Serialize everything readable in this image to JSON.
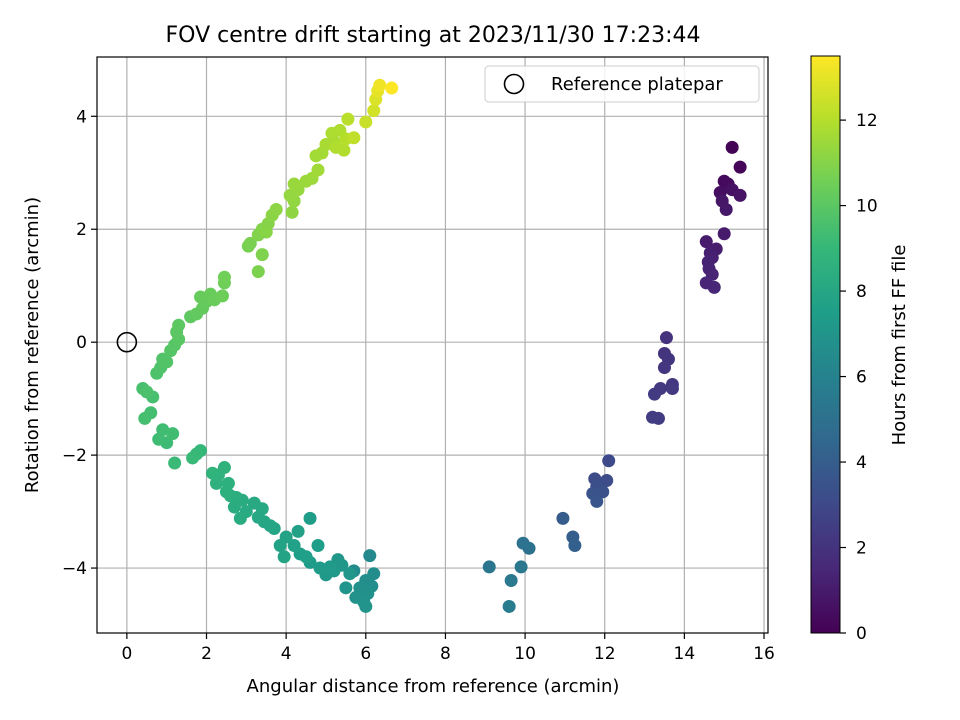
{
  "chart_data": {
    "type": "scatter",
    "title": "FOV centre drift starting at 2023/11/30 17:23:44",
    "xlabel": "Angular distance from reference (arcmin)",
    "ylabel": "Rotation from reference (arcmin)",
    "colorbar_label": "Hours from first FF file",
    "xlim": [
      -0.75,
      16.1
    ],
    "ylim": [
      -5.15,
      5.05
    ],
    "clim": [
      0,
      13.5
    ],
    "xticks": [
      0,
      2,
      4,
      6,
      8,
      10,
      12,
      14,
      16
    ],
    "yticks": [
      -4,
      -2,
      0,
      2,
      4
    ],
    "cticks": [
      0,
      2,
      4,
      6,
      8,
      10,
      12
    ],
    "xtick_labels": [
      "0",
      "2",
      "4",
      "6",
      "8",
      "10",
      "12",
      "14",
      "16"
    ],
    "ytick_labels": [
      "−4",
      "−2",
      "0",
      "2",
      "4"
    ],
    "ctick_labels": [
      "0",
      "2",
      "4",
      "6",
      "8",
      "10",
      "12"
    ],
    "grid": true,
    "legend": {
      "position": "top-right",
      "entries": [
        "Reference platepar"
      ]
    },
    "reference_point": {
      "x": 0,
      "y": 0
    },
    "colormap": [
      "#440154",
      "#482878",
      "#3e4989",
      "#31688e",
      "#26828e",
      "#1f9e89",
      "#35b779",
      "#6ece58",
      "#b5de2b",
      "#fde725"
    ],
    "points": [
      {
        "x": 15.2,
        "y": 3.45,
        "h": 0.1
      },
      {
        "x": 15.4,
        "y": 3.1,
        "h": 0.2
      },
      {
        "x": 15.0,
        "y": 2.85,
        "h": 0.3
      },
      {
        "x": 15.1,
        "y": 2.8,
        "h": 0.4
      },
      {
        "x": 14.9,
        "y": 2.65,
        "h": 0.5
      },
      {
        "x": 15.2,
        "y": 2.7,
        "h": 0.6
      },
      {
        "x": 15.4,
        "y": 2.6,
        "h": 0.7
      },
      {
        "x": 14.95,
        "y": 2.5,
        "h": 0.8
      },
      {
        "x": 15.05,
        "y": 2.35,
        "h": 0.9
      },
      {
        "x": 15.0,
        "y": 1.92,
        "h": 1.0
      },
      {
        "x": 14.55,
        "y": 1.78,
        "h": 1.05
      },
      {
        "x": 14.8,
        "y": 1.65,
        "h": 1.1
      },
      {
        "x": 14.65,
        "y": 1.58,
        "h": 1.15
      },
      {
        "x": 14.7,
        "y": 1.5,
        "h": 1.2
      },
      {
        "x": 14.6,
        "y": 1.42,
        "h": 1.25
      },
      {
        "x": 14.62,
        "y": 1.3,
        "h": 1.3
      },
      {
        "x": 14.7,
        "y": 1.2,
        "h": 1.35
      },
      {
        "x": 14.55,
        "y": 1.05,
        "h": 1.4
      },
      {
        "x": 14.75,
        "y": 0.97,
        "h": 1.45
      },
      {
        "x": 13.55,
        "y": 0.08,
        "h": 2.0
      },
      {
        "x": 13.5,
        "y": -0.2,
        "h": 2.05
      },
      {
        "x": 13.6,
        "y": -0.3,
        "h": 2.1
      },
      {
        "x": 13.5,
        "y": -0.45,
        "h": 2.15
      },
      {
        "x": 13.7,
        "y": -0.75,
        "h": 2.2
      },
      {
        "x": 13.4,
        "y": -0.82,
        "h": 2.25
      },
      {
        "x": 13.7,
        "y": -0.82,
        "h": 2.3
      },
      {
        "x": 13.25,
        "y": -0.92,
        "h": 2.35
      },
      {
        "x": 13.2,
        "y": -1.33,
        "h": 2.4
      },
      {
        "x": 13.35,
        "y": -1.35,
        "h": 2.45
      },
      {
        "x": 12.1,
        "y": -2.1,
        "h": 3.0
      },
      {
        "x": 11.75,
        "y": -2.42,
        "h": 3.1
      },
      {
        "x": 12.05,
        "y": -2.45,
        "h": 3.2
      },
      {
        "x": 11.8,
        "y": -2.55,
        "h": 3.3
      },
      {
        "x": 11.95,
        "y": -2.65,
        "h": 3.4
      },
      {
        "x": 11.7,
        "y": -2.68,
        "h": 3.5
      },
      {
        "x": 11.8,
        "y": -2.82,
        "h": 3.6
      },
      {
        "x": 10.95,
        "y": -3.12,
        "h": 3.9
      },
      {
        "x": 11.2,
        "y": -3.45,
        "h": 4.0
      },
      {
        "x": 11.25,
        "y": -3.6,
        "h": 4.1
      },
      {
        "x": 10.1,
        "y": -3.65,
        "h": 5.0
      },
      {
        "x": 9.95,
        "y": -3.56,
        "h": 5.1
      },
      {
        "x": 9.1,
        "y": -3.98,
        "h": 5.3
      },
      {
        "x": 9.9,
        "y": -3.98,
        "h": 5.4
      },
      {
        "x": 9.65,
        "y": -4.22,
        "h": 5.5
      },
      {
        "x": 9.6,
        "y": -4.68,
        "h": 5.6
      },
      {
        "x": 6.1,
        "y": -3.78,
        "h": 6.4
      },
      {
        "x": 5.7,
        "y": -4.05,
        "h": 6.5
      },
      {
        "x": 6.2,
        "y": -4.1,
        "h": 6.6
      },
      {
        "x": 6.0,
        "y": -4.22,
        "h": 6.65
      },
      {
        "x": 6.15,
        "y": -4.32,
        "h": 6.7
      },
      {
        "x": 5.85,
        "y": -4.35,
        "h": 6.75
      },
      {
        "x": 6.05,
        "y": -4.45,
        "h": 6.8
      },
      {
        "x": 5.75,
        "y": -4.52,
        "h": 6.85
      },
      {
        "x": 5.95,
        "y": -4.6,
        "h": 6.9
      },
      {
        "x": 6.0,
        "y": -4.68,
        "h": 6.95
      },
      {
        "x": 5.5,
        "y": -4.35,
        "h": 7.0
      },
      {
        "x": 5.6,
        "y": -4.1,
        "h": 7.05
      },
      {
        "x": 5.4,
        "y": -3.95,
        "h": 7.1
      },
      {
        "x": 5.3,
        "y": -3.85,
        "h": 7.15
      },
      {
        "x": 5.2,
        "y": -4.05,
        "h": 7.2
      },
      {
        "x": 5.0,
        "y": -4.12,
        "h": 7.25
      },
      {
        "x": 5.1,
        "y": -3.98,
        "h": 7.3
      },
      {
        "x": 4.85,
        "y": -4.0,
        "h": 7.35
      },
      {
        "x": 4.6,
        "y": -3.9,
        "h": 7.4
      },
      {
        "x": 4.6,
        "y": -3.12,
        "h": 7.45
      },
      {
        "x": 4.8,
        "y": -3.6,
        "h": 7.5
      },
      {
        "x": 4.35,
        "y": -3.75,
        "h": 7.55
      },
      {
        "x": 4.5,
        "y": -3.8,
        "h": 7.6
      },
      {
        "x": 4.2,
        "y": -3.6,
        "h": 7.65
      },
      {
        "x": 4.3,
        "y": -3.35,
        "h": 7.7
      },
      {
        "x": 4.0,
        "y": -3.45,
        "h": 7.75
      },
      {
        "x": 3.85,
        "y": -3.6,
        "h": 7.8
      },
      {
        "x": 3.95,
        "y": -3.8,
        "h": 7.85
      },
      {
        "x": 3.7,
        "y": -3.3,
        "h": 7.9
      },
      {
        "x": 3.6,
        "y": -3.25,
        "h": 7.95
      },
      {
        "x": 3.45,
        "y": -3.18,
        "h": 8.0
      },
      {
        "x": 3.3,
        "y": -3.1,
        "h": 8.05
      },
      {
        "x": 3.4,
        "y": -2.95,
        "h": 8.1
      },
      {
        "x": 3.2,
        "y": -2.85,
        "h": 8.15
      },
      {
        "x": 3.0,
        "y": -3.0,
        "h": 8.2
      },
      {
        "x": 2.85,
        "y": -3.12,
        "h": 8.25
      },
      {
        "x": 2.7,
        "y": -2.92,
        "h": 8.3
      },
      {
        "x": 2.9,
        "y": -2.8,
        "h": 8.35
      },
      {
        "x": 2.75,
        "y": -2.75,
        "h": 8.4
      },
      {
        "x": 2.6,
        "y": -2.72,
        "h": 8.45
      },
      {
        "x": 2.5,
        "y": -2.65,
        "h": 8.5
      },
      {
        "x": 2.55,
        "y": -2.5,
        "h": 8.55
      },
      {
        "x": 2.25,
        "y": -2.5,
        "h": 8.6
      },
      {
        "x": 2.3,
        "y": -2.35,
        "h": 8.65
      },
      {
        "x": 2.45,
        "y": -2.22,
        "h": 8.7
      },
      {
        "x": 2.15,
        "y": -2.32,
        "h": 8.75
      },
      {
        "x": 1.85,
        "y": -1.92,
        "h": 9.0
      },
      {
        "x": 1.75,
        "y": -1.98,
        "h": 9.05
      },
      {
        "x": 1.65,
        "y": -2.05,
        "h": 9.1
      },
      {
        "x": 1.2,
        "y": -2.14,
        "h": 9.15
      },
      {
        "x": 1.0,
        "y": -1.78,
        "h": 9.2
      },
      {
        "x": 0.8,
        "y": -1.72,
        "h": 9.25
      },
      {
        "x": 0.9,
        "y": -1.55,
        "h": 9.3
      },
      {
        "x": 1.15,
        "y": -1.62,
        "h": 9.35
      },
      {
        "x": 0.6,
        "y": -1.25,
        "h": 9.4
      },
      {
        "x": 0.45,
        "y": -1.35,
        "h": 9.45
      },
      {
        "x": 0.65,
        "y": -0.97,
        "h": 9.5
      },
      {
        "x": 0.4,
        "y": -0.82,
        "h": 9.55
      },
      {
        "x": 0.5,
        "y": -0.88,
        "h": 9.6
      },
      {
        "x": 0.75,
        "y": -0.55,
        "h": 9.65
      },
      {
        "x": 0.85,
        "y": -0.45,
        "h": 9.7
      },
      {
        "x": 0.9,
        "y": -0.3,
        "h": 9.75
      },
      {
        "x": 1.0,
        "y": -0.35,
        "h": 9.8
      },
      {
        "x": 1.1,
        "y": -0.15,
        "h": 9.85
      },
      {
        "x": 1.2,
        "y": -0.05,
        "h": 9.9
      },
      {
        "x": 1.3,
        "y": 0.05,
        "h": 9.95
      },
      {
        "x": 1.25,
        "y": 0.18,
        "h": 10.0
      },
      {
        "x": 1.3,
        "y": 0.3,
        "h": 10.05
      },
      {
        "x": 1.6,
        "y": 0.45,
        "h": 10.1
      },
      {
        "x": 1.75,
        "y": 0.5,
        "h": 10.15
      },
      {
        "x": 1.9,
        "y": 0.6,
        "h": 10.2
      },
      {
        "x": 2.0,
        "y": 0.72,
        "h": 10.25
      },
      {
        "x": 1.85,
        "y": 0.8,
        "h": 10.3
      },
      {
        "x": 2.1,
        "y": 0.85,
        "h": 10.35
      },
      {
        "x": 2.2,
        "y": 0.75,
        "h": 10.4
      },
      {
        "x": 2.4,
        "y": 0.82,
        "h": 10.45
      },
      {
        "x": 2.45,
        "y": 1.05,
        "h": 10.5
      },
      {
        "x": 2.45,
        "y": 1.15,
        "h": 10.55
      },
      {
        "x": 3.05,
        "y": 1.7,
        "h": 10.7
      },
      {
        "x": 3.1,
        "y": 1.75,
        "h": 10.75
      },
      {
        "x": 3.3,
        "y": 1.25,
        "h": 10.8
      },
      {
        "x": 3.4,
        "y": 1.55,
        "h": 10.85
      },
      {
        "x": 3.3,
        "y": 1.9,
        "h": 10.9
      },
      {
        "x": 3.4,
        "y": 2.0,
        "h": 10.95
      },
      {
        "x": 3.55,
        "y": 2.1,
        "h": 11.0
      },
      {
        "x": 3.5,
        "y": 1.95,
        "h": 11.05
      },
      {
        "x": 3.65,
        "y": 2.25,
        "h": 11.1
      },
      {
        "x": 3.75,
        "y": 2.35,
        "h": 11.15
      },
      {
        "x": 4.15,
        "y": 2.3,
        "h": 11.2
      },
      {
        "x": 4.2,
        "y": 2.5,
        "h": 11.25
      },
      {
        "x": 4.1,
        "y": 2.6,
        "h": 11.3
      },
      {
        "x": 4.3,
        "y": 2.7,
        "h": 11.35
      },
      {
        "x": 4.2,
        "y": 2.8,
        "h": 11.4
      },
      {
        "x": 4.5,
        "y": 2.85,
        "h": 11.45
      },
      {
        "x": 4.65,
        "y": 2.9,
        "h": 11.5
      },
      {
        "x": 4.8,
        "y": 3.05,
        "h": 11.55
      },
      {
        "x": 4.75,
        "y": 3.3,
        "h": 11.6
      },
      {
        "x": 4.9,
        "y": 3.35,
        "h": 11.65
      },
      {
        "x": 5.0,
        "y": 3.5,
        "h": 11.7
      },
      {
        "x": 5.2,
        "y": 3.55,
        "h": 11.75
      },
      {
        "x": 5.15,
        "y": 3.7,
        "h": 11.8
      },
      {
        "x": 5.35,
        "y": 3.75,
        "h": 11.85
      },
      {
        "x": 5.25,
        "y": 3.45,
        "h": 11.9
      },
      {
        "x": 5.45,
        "y": 3.4,
        "h": 11.95
      },
      {
        "x": 5.5,
        "y": 3.6,
        "h": 12.0
      },
      {
        "x": 5.55,
        "y": 3.95,
        "h": 12.1
      },
      {
        "x": 5.7,
        "y": 3.62,
        "h": 12.2
      },
      {
        "x": 6.0,
        "y": 3.9,
        "h": 12.4
      },
      {
        "x": 6.2,
        "y": 4.1,
        "h": 12.6
      },
      {
        "x": 6.25,
        "y": 4.3,
        "h": 12.8
      },
      {
        "x": 6.3,
        "y": 4.45,
        "h": 13.0
      },
      {
        "x": 6.35,
        "y": 4.55,
        "h": 13.2
      },
      {
        "x": 6.65,
        "y": 4.5,
        "h": 13.5
      }
    ]
  }
}
